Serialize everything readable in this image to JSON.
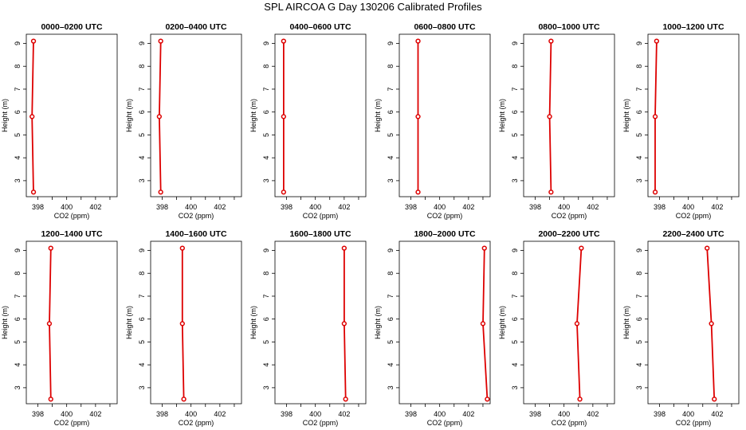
{
  "figure": {
    "title": "SPL AIRCOA G  Day 130206  Calibrated Profiles"
  },
  "chart_data": [
    {
      "type": "line",
      "title": "0000–0200 UTC",
      "xlabel": "CO2 (ppm)",
      "ylabel": "Height (m)",
      "xlim": [
        397.2,
        403.5
      ],
      "ylim": [
        2.3,
        9.4
      ],
      "xticks": [
        398,
        400,
        402
      ],
      "yticks": [
        3,
        4,
        5,
        6,
        7,
        8,
        9
      ],
      "series": [
        {
          "x": [
            397.7,
            397.6,
            397.7
          ],
          "y": [
            2.5,
            5.8,
            9.1
          ]
        }
      ]
    },
    {
      "type": "line",
      "title": "0200–0400 UTC",
      "xlabel": "CO2 (ppm)",
      "ylabel": "Height (m)",
      "xlim": [
        397.2,
        403.5
      ],
      "ylim": [
        2.3,
        9.4
      ],
      "xticks": [
        398,
        400,
        402
      ],
      "yticks": [
        3,
        4,
        5,
        6,
        7,
        8,
        9
      ],
      "series": [
        {
          "x": [
            397.9,
            397.8,
            397.9
          ],
          "y": [
            2.5,
            5.8,
            9.1
          ]
        }
      ]
    },
    {
      "type": "line",
      "title": "0400–0600 UTC",
      "xlabel": "CO2 (ppm)",
      "ylabel": "Height (m)",
      "xlim": [
        397.2,
        403.5
      ],
      "ylim": [
        2.3,
        9.4
      ],
      "xticks": [
        398,
        400,
        402
      ],
      "yticks": [
        3,
        4,
        5,
        6,
        7,
        8,
        9
      ],
      "series": [
        {
          "x": [
            397.8,
            397.8,
            397.8
          ],
          "y": [
            2.5,
            5.8,
            9.1
          ]
        }
      ]
    },
    {
      "type": "line",
      "title": "0600–0800 UTC",
      "xlabel": "CO2 (ppm)",
      "ylabel": "Height (m)",
      "xlim": [
        397.2,
        403.5
      ],
      "ylim": [
        2.3,
        9.4
      ],
      "xticks": [
        398,
        400,
        402
      ],
      "yticks": [
        3,
        4,
        5,
        6,
        7,
        8,
        9
      ],
      "series": [
        {
          "x": [
            398.5,
            398.5,
            398.5
          ],
          "y": [
            2.5,
            5.8,
            9.1
          ]
        }
      ]
    },
    {
      "type": "line",
      "title": "0800–1000 UTC",
      "xlabel": "CO2 (ppm)",
      "ylabel": "Height (m)",
      "xlim": [
        397.2,
        403.5
      ],
      "ylim": [
        2.3,
        9.4
      ],
      "xticks": [
        398,
        400,
        402
      ],
      "yticks": [
        3,
        4,
        5,
        6,
        7,
        8,
        9
      ],
      "series": [
        {
          "x": [
            399.1,
            399.0,
            399.1
          ],
          "y": [
            2.5,
            5.8,
            9.1
          ]
        }
      ]
    },
    {
      "type": "line",
      "title": "1000–1200 UTC",
      "xlabel": "CO2 (ppm)",
      "ylabel": "Height (m)",
      "xlim": [
        397.2,
        403.5
      ],
      "ylim": [
        2.3,
        9.4
      ],
      "xticks": [
        398,
        400,
        402
      ],
      "yticks": [
        3,
        4,
        5,
        6,
        7,
        8,
        9
      ],
      "series": [
        {
          "x": [
            397.7,
            397.7,
            397.8
          ],
          "y": [
            2.5,
            5.8,
            9.1
          ]
        }
      ]
    },
    {
      "type": "line",
      "title": "1200–1400 UTC",
      "xlabel": "CO2 (ppm)",
      "ylabel": "Height (m)",
      "xlim": [
        397.2,
        403.5
      ],
      "ylim": [
        2.3,
        9.4
      ],
      "xticks": [
        398,
        400,
        402
      ],
      "yticks": [
        3,
        4,
        5,
        6,
        7,
        8,
        9
      ],
      "series": [
        {
          "x": [
            398.9,
            398.8,
            398.9
          ],
          "y": [
            2.5,
            5.8,
            9.1
          ]
        }
      ]
    },
    {
      "type": "line",
      "title": "1400–1600 UTC",
      "xlabel": "CO2 (ppm)",
      "ylabel": "Height (m)",
      "xlim": [
        397.2,
        403.5
      ],
      "ylim": [
        2.3,
        9.4
      ],
      "xticks": [
        398,
        400,
        402
      ],
      "yticks": [
        3,
        4,
        5,
        6,
        7,
        8,
        9
      ],
      "series": [
        {
          "x": [
            399.5,
            399.4,
            399.4
          ],
          "y": [
            2.5,
            5.8,
            9.1
          ]
        }
      ]
    },
    {
      "type": "line",
      "title": "1600–1800 UTC",
      "xlabel": "CO2 (ppm)",
      "ylabel": "Height (m)",
      "xlim": [
        397.2,
        403.5
      ],
      "ylim": [
        2.3,
        9.4
      ],
      "xticks": [
        398,
        400,
        402
      ],
      "yticks": [
        3,
        4,
        5,
        6,
        7,
        8,
        9
      ],
      "series": [
        {
          "x": [
            402.1,
            402.0,
            402.0
          ],
          "y": [
            2.5,
            5.8,
            9.1
          ]
        }
      ]
    },
    {
      "type": "line",
      "title": "1800–2000 UTC",
      "xlabel": "CO2 (ppm)",
      "ylabel": "Height (m)",
      "xlim": [
        397.2,
        403.5
      ],
      "ylim": [
        2.3,
        9.4
      ],
      "xticks": [
        398,
        400,
        402
      ],
      "yticks": [
        3,
        4,
        5,
        6,
        7,
        8,
        9
      ],
      "series": [
        {
          "x": [
            403.3,
            403.0,
            403.1
          ],
          "y": [
            2.5,
            5.8,
            9.1
          ]
        }
      ]
    },
    {
      "type": "line",
      "title": "2000–2200 UTC",
      "xlabel": "CO2 (ppm)",
      "ylabel": "Height (m)",
      "xlim": [
        397.2,
        403.5
      ],
      "ylim": [
        2.3,
        9.4
      ],
      "xticks": [
        398,
        400,
        402
      ],
      "yticks": [
        3,
        4,
        5,
        6,
        7,
        8,
        9
      ],
      "series": [
        {
          "x": [
            401.1,
            400.9,
            401.2
          ],
          "y": [
            2.5,
            5.8,
            9.1
          ]
        }
      ]
    },
    {
      "type": "line",
      "title": "2200–2400 UTC",
      "xlabel": "CO2 (ppm)",
      "ylabel": "Height (m)",
      "xlim": [
        397.2,
        403.5
      ],
      "ylim": [
        2.3,
        9.4
      ],
      "xticks": [
        398,
        400,
        402
      ],
      "yticks": [
        3,
        4,
        5,
        6,
        7,
        8,
        9
      ],
      "series": [
        {
          "x": [
            401.8,
            401.6,
            401.3
          ],
          "y": [
            2.5,
            5.8,
            9.1
          ]
        }
      ]
    }
  ],
  "style": {
    "line_color": "#dd0000",
    "axis_color": "#000000"
  }
}
